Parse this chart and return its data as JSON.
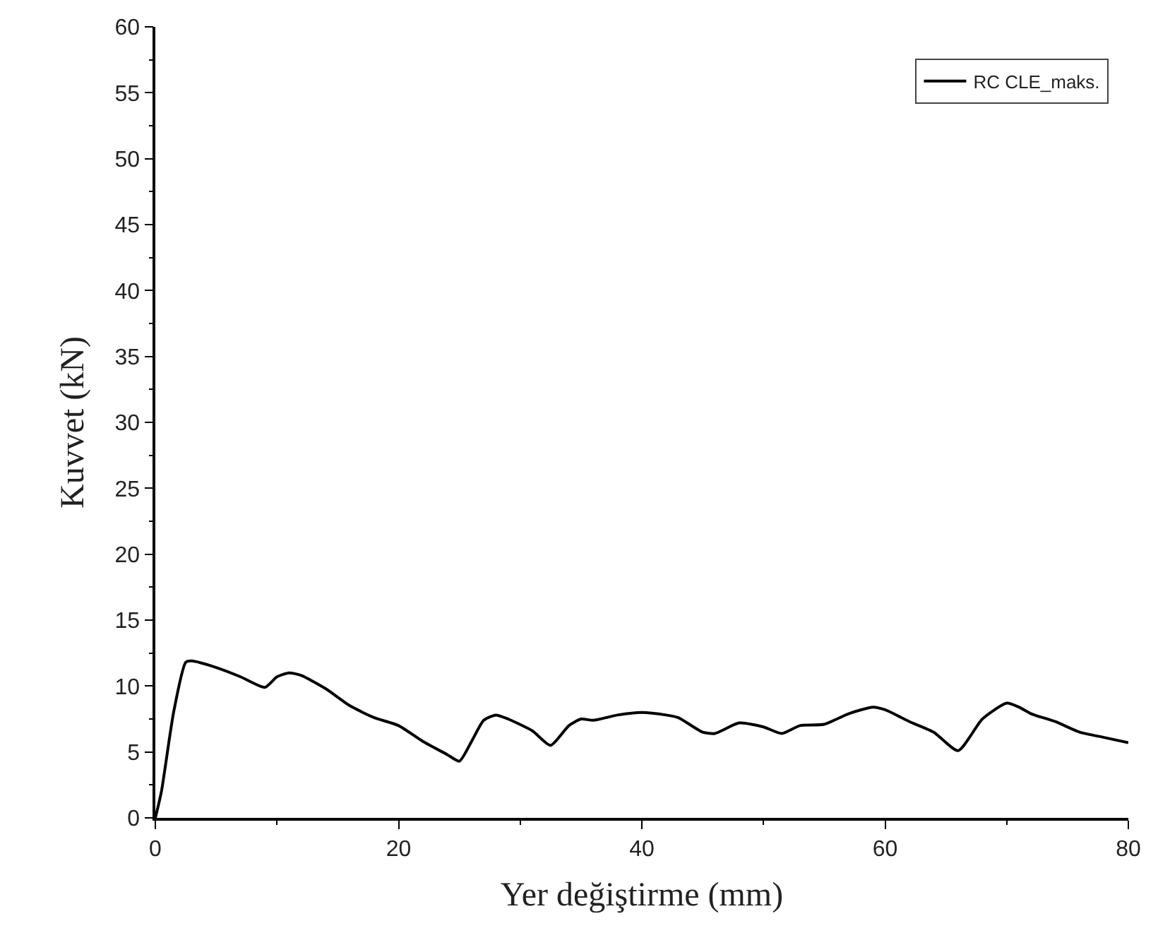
{
  "chart_data": {
    "type": "line",
    "xlabel": "Yer değiştirme (mm)",
    "ylabel": "Kuvvet (kN)",
    "xlim": [
      0,
      80
    ],
    "xticks": [
      0,
      20,
      40,
      60,
      80
    ],
    "ylim": [
      0,
      60
    ],
    "yticks": [
      0,
      5,
      10,
      15,
      20,
      25,
      30,
      35,
      40,
      45,
      50,
      55,
      60
    ],
    "legend": "top right",
    "line_style": "solid",
    "marker": "none",
    "series": [
      {
        "name": "RC CLE_maks.",
        "color": "#000000",
        "x": [
          0,
          0.5,
          1.5,
          2.5,
          3,
          5,
          7,
          9,
          10,
          11,
          12,
          14,
          16,
          18,
          20,
          22,
          24,
          25,
          26,
          27,
          28,
          29,
          31,
          32.5,
          34,
          35,
          36,
          38,
          40,
          42,
          43,
          45,
          46,
          48,
          50,
          51.5,
          53,
          55,
          57,
          59,
          60,
          62,
          64,
          66,
          68,
          70,
          71,
          72,
          74,
          76,
          78,
          80
        ],
        "values": [
          0,
          2,
          8,
          11.8,
          11.9,
          11.4,
          10.7,
          9.9,
          10.7,
          11.0,
          10.8,
          9.8,
          8.5,
          7.6,
          7.0,
          5.8,
          4.8,
          4.3,
          5.8,
          7.4,
          7.8,
          7.5,
          6.6,
          5.5,
          7.0,
          7.5,
          7.4,
          7.8,
          8.0,
          7.8,
          7.6,
          6.5,
          6.4,
          7.2,
          6.9,
          6.4,
          7.0,
          7.1,
          7.9,
          8.4,
          8.2,
          7.3,
          6.5,
          5.1,
          7.5,
          8.7,
          8.4,
          7.9,
          7.3,
          6.5,
          6.1,
          5.7
        ]
      }
    ]
  }
}
